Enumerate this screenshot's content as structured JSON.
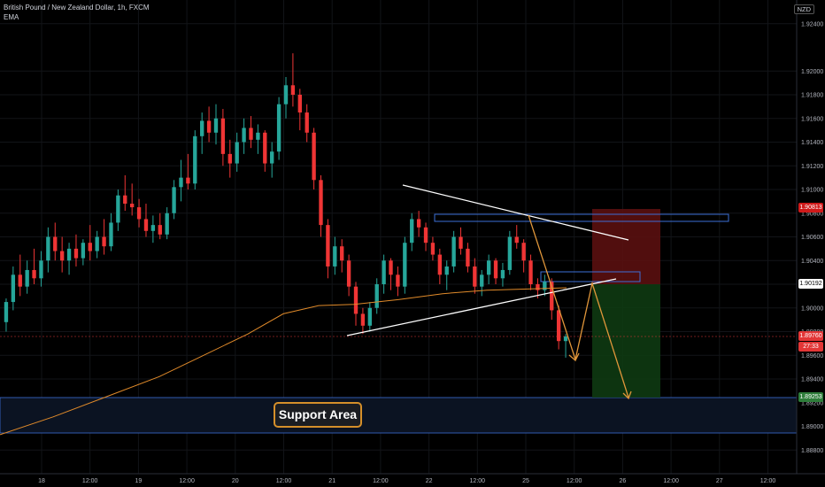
{
  "header": {
    "title": "British Pound / New Zealand Dollar, 1h, FXCM",
    "indicator": "EMA",
    "currency": "NZD"
  },
  "annotations": {
    "support_label": "Support Area"
  },
  "price_tags": {
    "target": "1.90813",
    "entry": "1.90192",
    "last": "1.89760",
    "timer": "27:33",
    "support": "1.89253"
  },
  "colors": {
    "background": "#000000",
    "bull_candle": "#26a69a",
    "bear_candle": "#ef3535",
    "ema_line": "#e08a2a",
    "trendline": "#ffffff",
    "projection": "#e0963a",
    "support_zone": "#0b1322",
    "stop_zone": "#5a1010",
    "target_zone": "#0e3a12"
  },
  "chart_data": {
    "type": "candlestick",
    "symbol": "GBPNZD",
    "timeframe": "1h",
    "y_axis": {
      "min": 1.886,
      "max": 1.926,
      "ticks": [
        "1.92400",
        "1.92000",
        "1.91800",
        "1.91600",
        "1.91400",
        "1.91200",
        "1.91000",
        "1.90800",
        "1.90600",
        "1.90400",
        "1.90200",
        "1.90000",
        "1.89800",
        "1.89600",
        "1.89400",
        "1.89200",
        "1.89000",
        "1.88800"
      ]
    },
    "x_axis": {
      "ticks": [
        "18",
        "12:00",
        "19",
        "12:00",
        "20",
        "12:00",
        "21",
        "12:00",
        "22",
        "12:00",
        "25",
        "12:00",
        "26",
        "12:00",
        "27",
        "12:00"
      ]
    },
    "candles": [
      [
        1.8988,
        1.9008,
        1.898,
        1.9005
      ],
      [
        1.9005,
        1.9035,
        1.8998,
        1.9028
      ],
      [
        1.9028,
        1.9045,
        1.901,
        1.9018
      ],
      [
        1.9018,
        1.904,
        1.9012,
        1.9032
      ],
      [
        1.9032,
        1.905,
        1.902,
        1.9025
      ],
      [
        1.9025,
        1.9048,
        1.9018,
        1.904
      ],
      [
        1.904,
        1.9068,
        1.903,
        1.906
      ],
      [
        1.906,
        1.9072,
        1.904,
        1.9048
      ],
      [
        1.9048,
        1.906,
        1.903,
        1.904
      ],
      [
        1.904,
        1.9055,
        1.9028,
        1.905
      ],
      [
        1.905,
        1.9062,
        1.9035,
        1.9042
      ],
      [
        1.9042,
        1.9058,
        1.9036,
        1.9055
      ],
      [
        1.9055,
        1.907,
        1.904,
        1.9048
      ],
      [
        1.9048,
        1.9065,
        1.9042,
        1.906
      ],
      [
        1.906,
        1.9075,
        1.9045,
        1.9052
      ],
      [
        1.9052,
        1.908,
        1.9048,
        1.9072
      ],
      [
        1.9072,
        1.91,
        1.9065,
        1.9095
      ],
      [
        1.9095,
        1.9112,
        1.9082,
        1.9088
      ],
      [
        1.9088,
        1.9105,
        1.9078,
        1.9085
      ],
      [
        1.9085,
        1.9092,
        1.9068,
        1.9075
      ],
      [
        1.9075,
        1.9088,
        1.906,
        1.9065
      ],
      [
        1.9065,
        1.9078,
        1.9055,
        1.907
      ],
      [
        1.907,
        1.908,
        1.9058,
        1.9062
      ],
      [
        1.9062,
        1.9085,
        1.9058,
        1.908
      ],
      [
        1.908,
        1.9108,
        1.9075,
        1.9102
      ],
      [
        1.9102,
        1.9125,
        1.909,
        1.911
      ],
      [
        1.911,
        1.913,
        1.91,
        1.9105
      ],
      [
        1.9105,
        1.915,
        1.91,
        1.9145
      ],
      [
        1.9145,
        1.9165,
        1.913,
        1.9158
      ],
      [
        1.9158,
        1.917,
        1.914,
        1.9148
      ],
      [
        1.9148,
        1.9172,
        1.9138,
        1.916
      ],
      [
        1.916,
        1.9168,
        1.912,
        1.913
      ],
      [
        1.913,
        1.9142,
        1.911,
        1.9122
      ],
      [
        1.9122,
        1.9148,
        1.9115,
        1.914
      ],
      [
        1.914,
        1.916,
        1.913,
        1.9152
      ],
      [
        1.9152,
        1.9162,
        1.9135,
        1.9142
      ],
      [
        1.9142,
        1.9155,
        1.913,
        1.9148
      ],
      [
        1.9148,
        1.915,
        1.9115,
        1.9122
      ],
      [
        1.9122,
        1.914,
        1.911,
        1.9132
      ],
      [
        1.9132,
        1.9178,
        1.9125,
        1.9172
      ],
      [
        1.9172,
        1.9195,
        1.916,
        1.9188
      ],
      [
        1.9188,
        1.9215,
        1.917,
        1.918
      ],
      [
        1.918,
        1.9185,
        1.915,
        1.9165
      ],
      [
        1.9165,
        1.9172,
        1.914,
        1.9148
      ],
      [
        1.9148,
        1.9152,
        1.91,
        1.9108
      ],
      [
        1.9108,
        1.9112,
        1.906,
        1.907
      ],
      [
        1.907,
        1.9075,
        1.9025,
        1.9035
      ],
      [
        1.9035,
        1.906,
        1.9028,
        1.9052
      ],
      [
        1.9052,
        1.9058,
        1.903,
        1.904
      ],
      [
        1.904,
        1.9045,
        1.901,
        1.9018
      ],
      [
        1.9018,
        1.9022,
        1.8985,
        1.8995
      ],
      [
        1.8995,
        1.9,
        1.8978,
        1.8985
      ],
      [
        1.8985,
        1.9005,
        1.898,
        1.9
      ],
      [
        1.9,
        1.9025,
        1.8995,
        1.902
      ],
      [
        1.902,
        1.9045,
        1.9012,
        1.904
      ],
      [
        1.904,
        1.9042,
        1.9015,
        1.9028
      ],
      [
        1.9028,
        1.9035,
        1.901,
        1.9018
      ],
      [
        1.9018,
        1.906,
        1.9012,
        1.9055
      ],
      [
        1.9055,
        1.908,
        1.9048,
        1.9075
      ],
      [
        1.9075,
        1.9082,
        1.906,
        1.9068
      ],
      [
        1.9068,
        1.9072,
        1.9048,
        1.9055
      ],
      [
        1.9055,
        1.906,
        1.904,
        1.9045
      ],
      [
        1.9045,
        1.905,
        1.902,
        1.9028
      ],
      [
        1.9028,
        1.904,
        1.9015,
        1.9035
      ],
      [
        1.9035,
        1.9065,
        1.903,
        1.906
      ],
      [
        1.906,
        1.9068,
        1.9045,
        1.905
      ],
      [
        1.905,
        1.9055,
        1.903,
        1.9035
      ],
      [
        1.9035,
        1.9042,
        1.9012,
        1.9018
      ],
      [
        1.9018,
        1.9032,
        1.901,
        1.9028
      ],
      [
        1.9028,
        1.9045,
        1.902,
        1.904
      ],
      [
        1.904,
        1.9042,
        1.902,
        1.9025
      ],
      [
        1.9025,
        1.9038,
        1.9018,
        1.9032
      ],
      [
        1.9032,
        1.9065,
        1.9028,
        1.906
      ],
      [
        1.906,
        1.907,
        1.905,
        1.9055
      ],
      [
        1.9055,
        1.9058,
        1.903,
        1.904
      ],
      [
        1.904,
        1.9045,
        1.9015,
        1.902
      ],
      [
        1.902,
        1.9025,
        1.9008,
        1.9015
      ],
      [
        1.9015,
        1.9028,
        1.901,
        1.9022
      ],
      [
        1.9022,
        1.9025,
        1.899,
        1.8998
      ],
      [
        1.8998,
        1.9002,
        1.8965,
        1.8972
      ],
      [
        1.8972,
        1.8978,
        1.8958,
        1.8976
      ]
    ],
    "ema": [
      [
        0,
        1.8893
      ],
      [
        60,
        1.8908
      ],
      [
        120,
        1.8925
      ],
      [
        180,
        1.8942
      ],
      [
        230,
        1.896
      ],
      [
        280,
        1.8978
      ],
      [
        320,
        1.8995
      ],
      [
        360,
        1.9002
      ],
      [
        400,
        1.9003
      ],
      [
        450,
        1.9007
      ],
      [
        500,
        1.9012
      ],
      [
        550,
        1.9015
      ],
      [
        600,
        1.9016
      ],
      [
        640,
        1.9017
      ]
    ],
    "levels": {
      "target": 1.90813,
      "entry": 1.90192,
      "last": 1.8976,
      "support_top": 1.89253,
      "support_bottom": 1.88935
    }
  }
}
